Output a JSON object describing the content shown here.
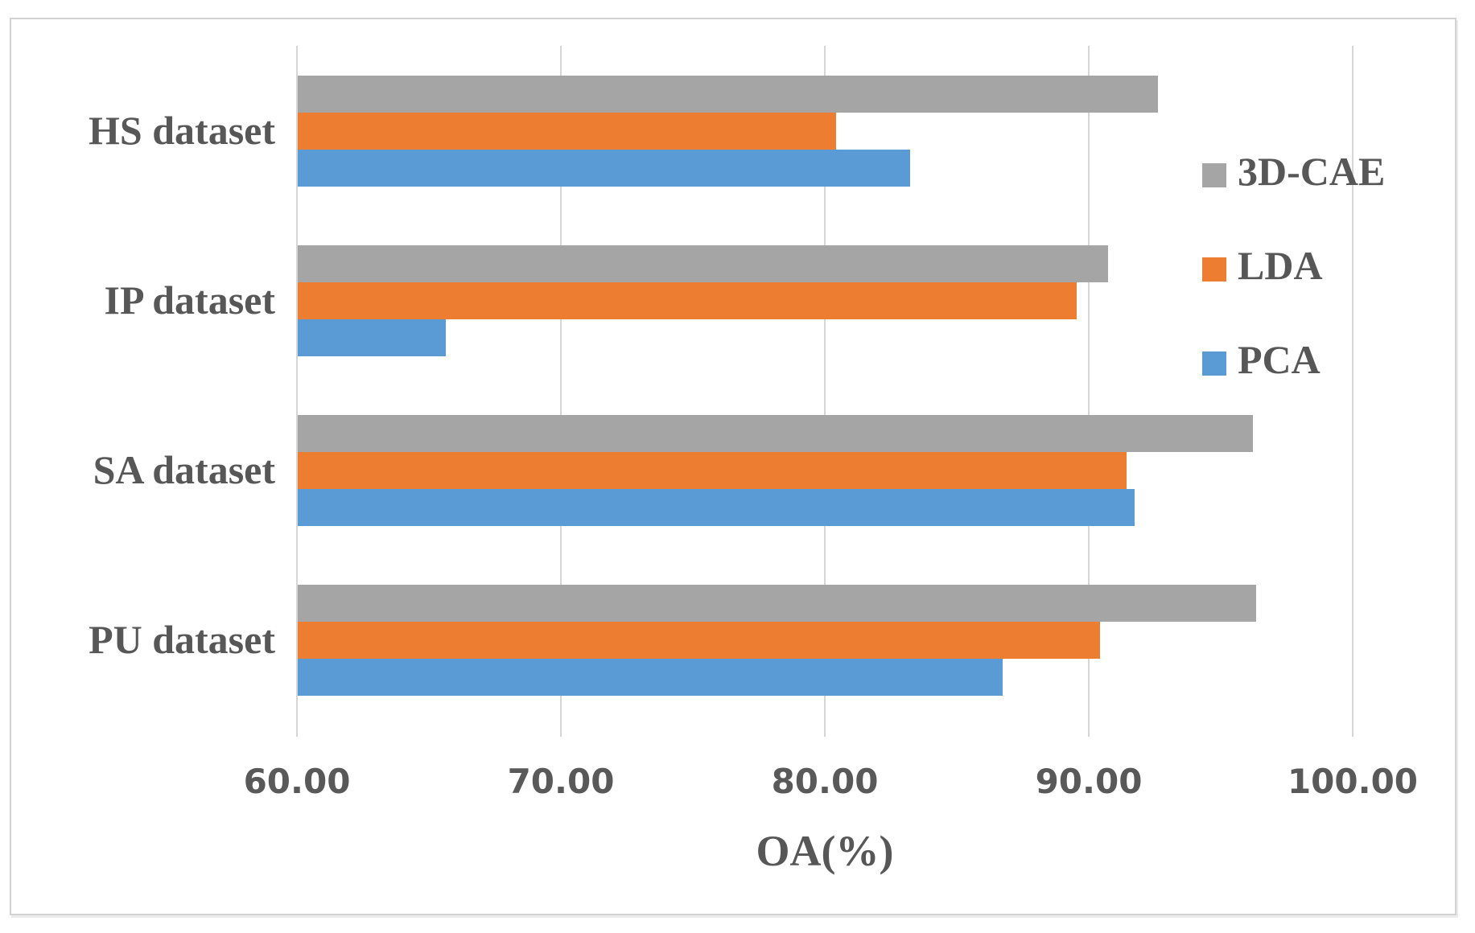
{
  "chart_data": {
    "type": "bar",
    "orientation": "horizontal",
    "title": "",
    "xlabel": "OA(%)",
    "ylabel": "",
    "categories": [
      "HS dataset",
      "IP dataset",
      "SA dataset",
      "PU dataset"
    ],
    "series": [
      {
        "name": "3D-CAE",
        "color": "#a5a5a5",
        "values": [
          92.6,
          90.7,
          96.2,
          96.3
        ]
      },
      {
        "name": "LDA",
        "color": "#ed7d31",
        "values": [
          80.4,
          89.5,
          91.4,
          90.4
        ]
      },
      {
        "name": "PCA",
        "color": "#5b9bd5",
        "values": [
          83.2,
          65.6,
          91.7,
          86.7
        ]
      }
    ],
    "xlim": [
      60,
      100
    ],
    "xticks": [
      60,
      70,
      80,
      90,
      100
    ],
    "xtick_labels": [
      "60.00",
      "70.00",
      "80.00",
      "90.00",
      "100.00"
    ],
    "grid": true,
    "legend_position": "right",
    "legend_entries": [
      "3D-CAE",
      "LDA",
      "PCA"
    ],
    "text_color": "#575757",
    "gridline_color": "#d6d6d6"
  }
}
